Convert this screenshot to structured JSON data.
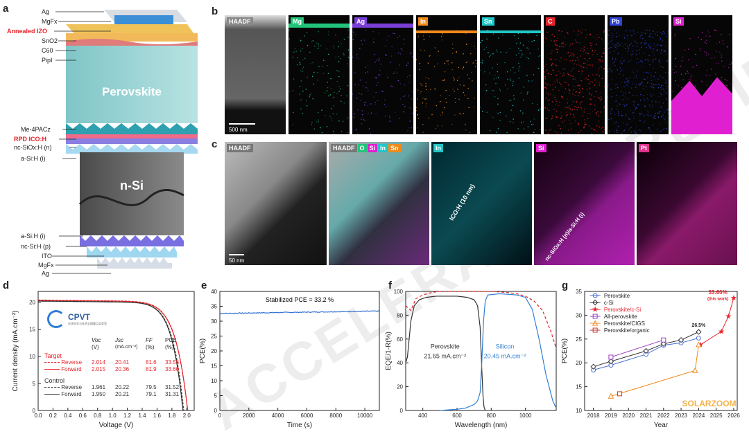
{
  "panels": {
    "a": "a",
    "b": "b",
    "c": "c",
    "d": "d",
    "e": "e",
    "f": "f",
    "g": "g"
  },
  "watermark": "ACCELERATED PREVIEW",
  "panel_a": {
    "layers_top": [
      "Ag",
      "MgFx",
      "Annealed IZO",
      "SnO2",
      "C60",
      "PipI"
    ],
    "perovskite": "Perovskite",
    "layers_mid": [
      "Me-4PACz",
      "RPD ICO:H",
      "nc-SiOx:H (n)",
      "a-Si:H (i)"
    ],
    "nsi": "n-Si",
    "layers_bottom": [
      "a-Si:H (i)",
      "nc-Si:H (p)",
      "ITO",
      "MgFx",
      "Ag"
    ],
    "highlight_color": "#e8232a"
  },
  "panel_b": {
    "maps": [
      {
        "name": "HAADF",
        "color": "#888888"
      },
      {
        "name": "Mg",
        "color": "#21c47a"
      },
      {
        "name": "Ag",
        "color": "#7a3fd6"
      },
      {
        "name": "In",
        "color": "#f08a1c"
      },
      {
        "name": "Sn",
        "color": "#22c6c6"
      },
      {
        "name": "C",
        "color": "#e8232a"
      },
      {
        "name": "Pb",
        "color": "#2f44d6"
      },
      {
        "name": "Si",
        "color": "#e020d0"
      }
    ],
    "scalebar": "500 nm"
  },
  "panel_c": {
    "haadf": "HAADF",
    "overlay_tags": [
      "HAADF",
      "O",
      "Si",
      "In",
      "Sn"
    ],
    "in_tag": "In",
    "in_annotation": "ICO:H (10 nm)",
    "si_tag": "Si",
    "si_annotation": "nc-SiOx:H (n)/a-Si:H (i)",
    "pt_tag": "Pt",
    "scalebar": "50 nm"
  },
  "chart_data": [
    {
      "id": "d",
      "type": "line",
      "xlabel": "Voltage (V)",
      "ylabel": "Current density (mA.cm⁻²)",
      "xlim": [
        0,
        2.1
      ],
      "ylim": [
        0,
        22
      ],
      "xticks": [
        "0.0",
        "0.2",
        "0.4",
        "0.6",
        "0.8",
        "1.0",
        "1.2",
        "1.4",
        "1.6",
        "1.8",
        "2.0"
      ],
      "yticks": [
        "0",
        "5",
        "10",
        "15",
        "20"
      ],
      "logo": "CPVT",
      "logo_sub": "光伏科学与技术全国重点实验室",
      "table_headers": [
        "Voc",
        "Jsc",
        "FF",
        "PCE"
      ],
      "table_units": [
        "(V)",
        "(mA.cm⁻²)",
        "(%)",
        "(%)"
      ],
      "groups": [
        {
          "name": "Target",
          "color": "#e8232a",
          "rows": [
            {
              "label": "Reverse",
              "Voc": "2.014",
              "Jsc": "20.41",
              "FF": "81.6",
              "PCE": "33.55",
              "dashed": true
            },
            {
              "label": "Forward",
              "Voc": "2.015",
              "Jsc": "20.36",
              "FF": "81.9",
              "PCE": "33.60",
              "dashed": false
            }
          ]
        },
        {
          "name": "Control",
          "color": "#333333",
          "rows": [
            {
              "label": "Reverse",
              "Voc": "1.961",
              "Jsc": "20.22",
              "FF": "79.5",
              "PCE": "31.52",
              "dashed": true
            },
            {
              "label": "Forward",
              "Voc": "1.950",
              "Jsc": "20.21",
              "FF": "79.1",
              "PCE": "31.31",
              "dashed": false
            }
          ]
        }
      ]
    },
    {
      "id": "e",
      "type": "line",
      "xlabel": "Time (s)",
      "ylabel": "PCE(%)",
      "xlim": [
        0,
        11000
      ],
      "ylim": [
        0,
        40
      ],
      "xticks": [
        "0",
        "2000",
        "4000",
        "6000",
        "8000",
        "10000"
      ],
      "yticks": [
        "0",
        "5",
        "10",
        "15",
        "20",
        "25",
        "30",
        "35",
        "40"
      ],
      "annotation": "Stabilized PCE = 33.2 %",
      "series": [
        {
          "name": "PCE",
          "color": "#2f6fd0",
          "start": 32.6,
          "end": 33.4
        }
      ]
    },
    {
      "id": "f",
      "type": "line",
      "xlabel": "Wavelength (nm)",
      "ylabel": "EQE/1-R(%)",
      "xlim": [
        300,
        1180
      ],
      "ylim": [
        0,
        100
      ],
      "xticks": [
        "400",
        "600",
        "800",
        "1000"
      ],
      "yticks": [
        "0",
        "20",
        "40",
        "60",
        "80",
        "100"
      ],
      "series": [
        {
          "name": "Perovskite",
          "jsc": "21.65 mA.cm⁻²",
          "color": "#333333",
          "x": [
            300,
            310,
            330,
            350,
            380,
            420,
            480,
            540,
            600,
            660,
            700,
            720,
            735,
            745,
            752,
            758,
            765
          ],
          "y": [
            40,
            45,
            75,
            88,
            93,
            95,
            96,
            96,
            96,
            95,
            93,
            88,
            70,
            35,
            12,
            3,
            0
          ]
        },
        {
          "name": "Silicon",
          "jsc": "20.45 mA.cm⁻²",
          "color": "#2f7dd6",
          "x": [
            500,
            550,
            600,
            650,
            700,
            720,
            735,
            745,
            755,
            765,
            780,
            850,
            950,
            1000,
            1040,
            1080,
            1120,
            1160,
            1180
          ],
          "y": [
            0,
            0.5,
            1,
            2,
            5,
            8,
            15,
            40,
            75,
            92,
            97,
            98,
            97,
            95,
            85,
            60,
            30,
            8,
            2
          ]
        },
        {
          "name": "1-R",
          "color": "#e8232a",
          "dashed": true,
          "x": [
            300,
            330,
            360,
            400,
            450,
            500,
            600,
            700,
            800,
            900,
            950,
            1000,
            1050,
            1100,
            1150,
            1180
          ],
          "y": [
            88,
            84,
            94,
            97,
            99,
            100,
            100,
            100,
            100,
            99,
            98,
            96,
            92,
            84,
            66,
            52
          ]
        }
      ]
    },
    {
      "id": "g",
      "type": "line",
      "xlabel": "Year",
      "ylabel": "PCE(%)",
      "xlim": [
        2017.5,
        2026.2
      ],
      "ylim": [
        10,
        35
      ],
      "xticks": [
        "2018",
        "2019",
        "2020",
        "2021",
        "2022",
        "2023",
        "2024",
        "2025",
        "2026"
      ],
      "yticks": [
        "10",
        "15",
        "20",
        "25",
        "30",
        "35"
      ],
      "annotation_top": "33.60%",
      "annotation_sub": "(this work)",
      "annotation_csi": "26.5%",
      "watermark": "SOLARZOOM",
      "series": [
        {
          "name": "Perovskite",
          "color": "#4a6fd0",
          "marker": "circle",
          "x": [
            2018,
            2019,
            2021,
            2022,
            2023,
            2024
          ],
          "y": [
            18.5,
            19.5,
            21.8,
            23.7,
            24.2,
            25.2
          ]
        },
        {
          "name": "c-Si",
          "color": "#333333",
          "marker": "diamond",
          "x": [
            2018,
            2019,
            2021,
            2022,
            2023,
            2024
          ],
          "y": [
            19.2,
            20.3,
            22.5,
            24.0,
            24.8,
            26.5
          ]
        },
        {
          "name": "Perovskite/c-Si",
          "color": "#e8232a",
          "marker": "star",
          "x": [
            2024.1,
            2025.3,
            2025.7,
            2026.0
          ],
          "y": [
            23.8,
            26.6,
            29.8,
            33.6
          ]
        },
        {
          "name": "All-perovskite",
          "color": "#9b3fc0",
          "marker": "xbox",
          "x": [
            2019,
            2022
          ],
          "y": [
            21.2,
            24.8
          ]
        },
        {
          "name": "Perovskite/CIGS",
          "color": "#f08a1c",
          "marker": "triangle",
          "x": [
            2019,
            2023.8,
            2024
          ],
          "y": [
            13.0,
            18.4,
            23.8
          ]
        },
        {
          "name": "Perovskite/organic",
          "color": "#c0392b",
          "marker": "xbox",
          "x": [
            2019.5
          ],
          "y": [
            13.5
          ]
        }
      ]
    }
  ]
}
